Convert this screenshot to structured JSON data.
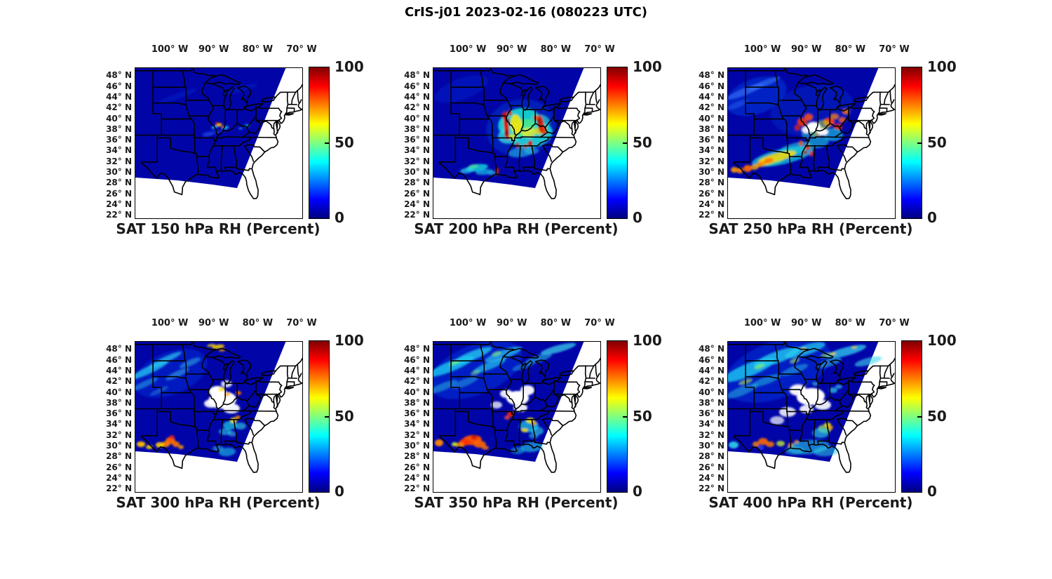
{
  "figure": {
    "title": "CrIS-j01 2023-02-16 (080223 UTC)",
    "background": "#ffffff",
    "text_color": "#1a1a1a"
  },
  "axes": {
    "lon_tick_labels": [
      "100° W",
      "90° W",
      "80° W",
      "70° W"
    ],
    "lat_tick_labels": [
      "48° N",
      "46° N",
      "44° N",
      "42° N",
      "40° N",
      "38° N",
      "36° N",
      "34° N",
      "32° N",
      "30° N",
      "28° N",
      "26° N",
      "24° N",
      "22° N"
    ]
  },
  "colorbar": {
    "tick_labels": [
      "100",
      "50",
      "0"
    ],
    "min": 0,
    "max": 100,
    "colormap": "jet",
    "gradient_stops": [
      "#00007f",
      "#0000ff",
      "#00ffff",
      "#ffff00",
      "#ff0000",
      "#7f0000"
    ]
  },
  "panels": [
    {
      "title": "SAT 150 hPa RH (Percent)",
      "pressure_hPa": 150
    },
    {
      "title": "SAT 200 hPa RH (Percent)",
      "pressure_hPa": 200
    },
    {
      "title": "SAT 250 hPa RH (Percent)",
      "pressure_hPa": 250
    },
    {
      "title": "SAT 300 hPa RH (Percent)",
      "pressure_hPa": 300
    },
    {
      "title": "SAT 350 hPa RH (Percent)",
      "pressure_hPa": 350
    },
    {
      "title": "SAT 400 hPa RH (Percent)",
      "pressure_hPa": 400
    }
  ],
  "chart_data": {
    "type": "heatmap",
    "title": "CrIS-j01 2023-02-16 (080223 UTC)",
    "instrument": "CrIS-j01",
    "date": "2023-02-16",
    "time_utc": "080223",
    "variable": "SAT RH",
    "units": "Percent",
    "value_range": [
      0,
      100
    ],
    "colormap": "jet",
    "colorbar_ticks": [
      0,
      50,
      100
    ],
    "legend_position": "right of each panel",
    "basemap": "US state boundaries, no grid",
    "x_axis": {
      "label_format": "degrees West",
      "ticks": [
        100,
        90,
        80,
        70
      ],
      "range": [
        108,
        70
      ]
    },
    "y_axis": {
      "label_format": "degrees North",
      "ticks": [
        48,
        46,
        44,
        42,
        40,
        38,
        36,
        34,
        32,
        30,
        28,
        26,
        24,
        22
      ],
      "range": [
        49.5,
        21.5
      ]
    },
    "swath_note": "Single polar-orbiter overpass swath tilted NE-SW; white areas = no retrieval",
    "panels": [
      {
        "pressure_hPa": 150,
        "title": "SAT 150 hPa RH (Percent)",
        "summary": "Swath almost uniformly 0-10% RH (dark blue); narrow 60-100% streak near 89-88W 38.5-39.5N; small 30-50% patches near 87.5W 38.5N and 82.5W 39N"
      },
      {
        "pressure_hPa": 200,
        "title": "SAT 200 hPa RH (Percent)",
        "summary": "Broad 30-70% moist shield over Ohio/Tennessee valleys (93-81W, 33-42N) with embedded 90-100% bands near 91.5W and 83.5W; 30-50% arcs over central Texas 100-96W 29-32.5N; rest of swath 0-15%"
      },
      {
        "pressure_hPa": 250,
        "title": "SAT 250 hPa RH (Percent)",
        "summary": "40-100% band arcing from west Texas (104W 30N) northeast to Ohio valley; scattered 80-100% blobs 92-82W 37-41N; white retrieval gaps near 89-86W 37-39N; northwest of swath 10-25%"
      },
      {
        "pressure_hPa": 300,
        "title": "SAT 300 hPa RH (Percent)",
        "summary": "Mostly 5-25% with 30-45% cyan streaks over northern plains; 60-90% cluster south Texas 102-97W 29.5-32.5N; 30-70% patches 88-84W 32-36N; large white data gap over midwest 91-84W 36-41N"
      },
      {
        "pressure_hPa": 350,
        "title": "SAT 350 hPa RH (Percent)",
        "summary": "Widespread 25-45% bands across northern half of swath; strong 70-100% cluster central Texas 102-97W 29.5-32N; 30-70% over Alabama/Georgia; 85-100% spot near 90.5W 36N; white gaps over midwest"
      },
      {
        "pressure_hPa": 400,
        "title": "SAT 400 hPa RH (Percent)",
        "summary": "Extensive 25-50% cyan bands across north and Gulf coast; 60-90% spots south Texas and near 90W 30-32N; 40-70% patch near 86W 32-34N; large white data gaps over midwest and central plains"
      }
    ]
  }
}
